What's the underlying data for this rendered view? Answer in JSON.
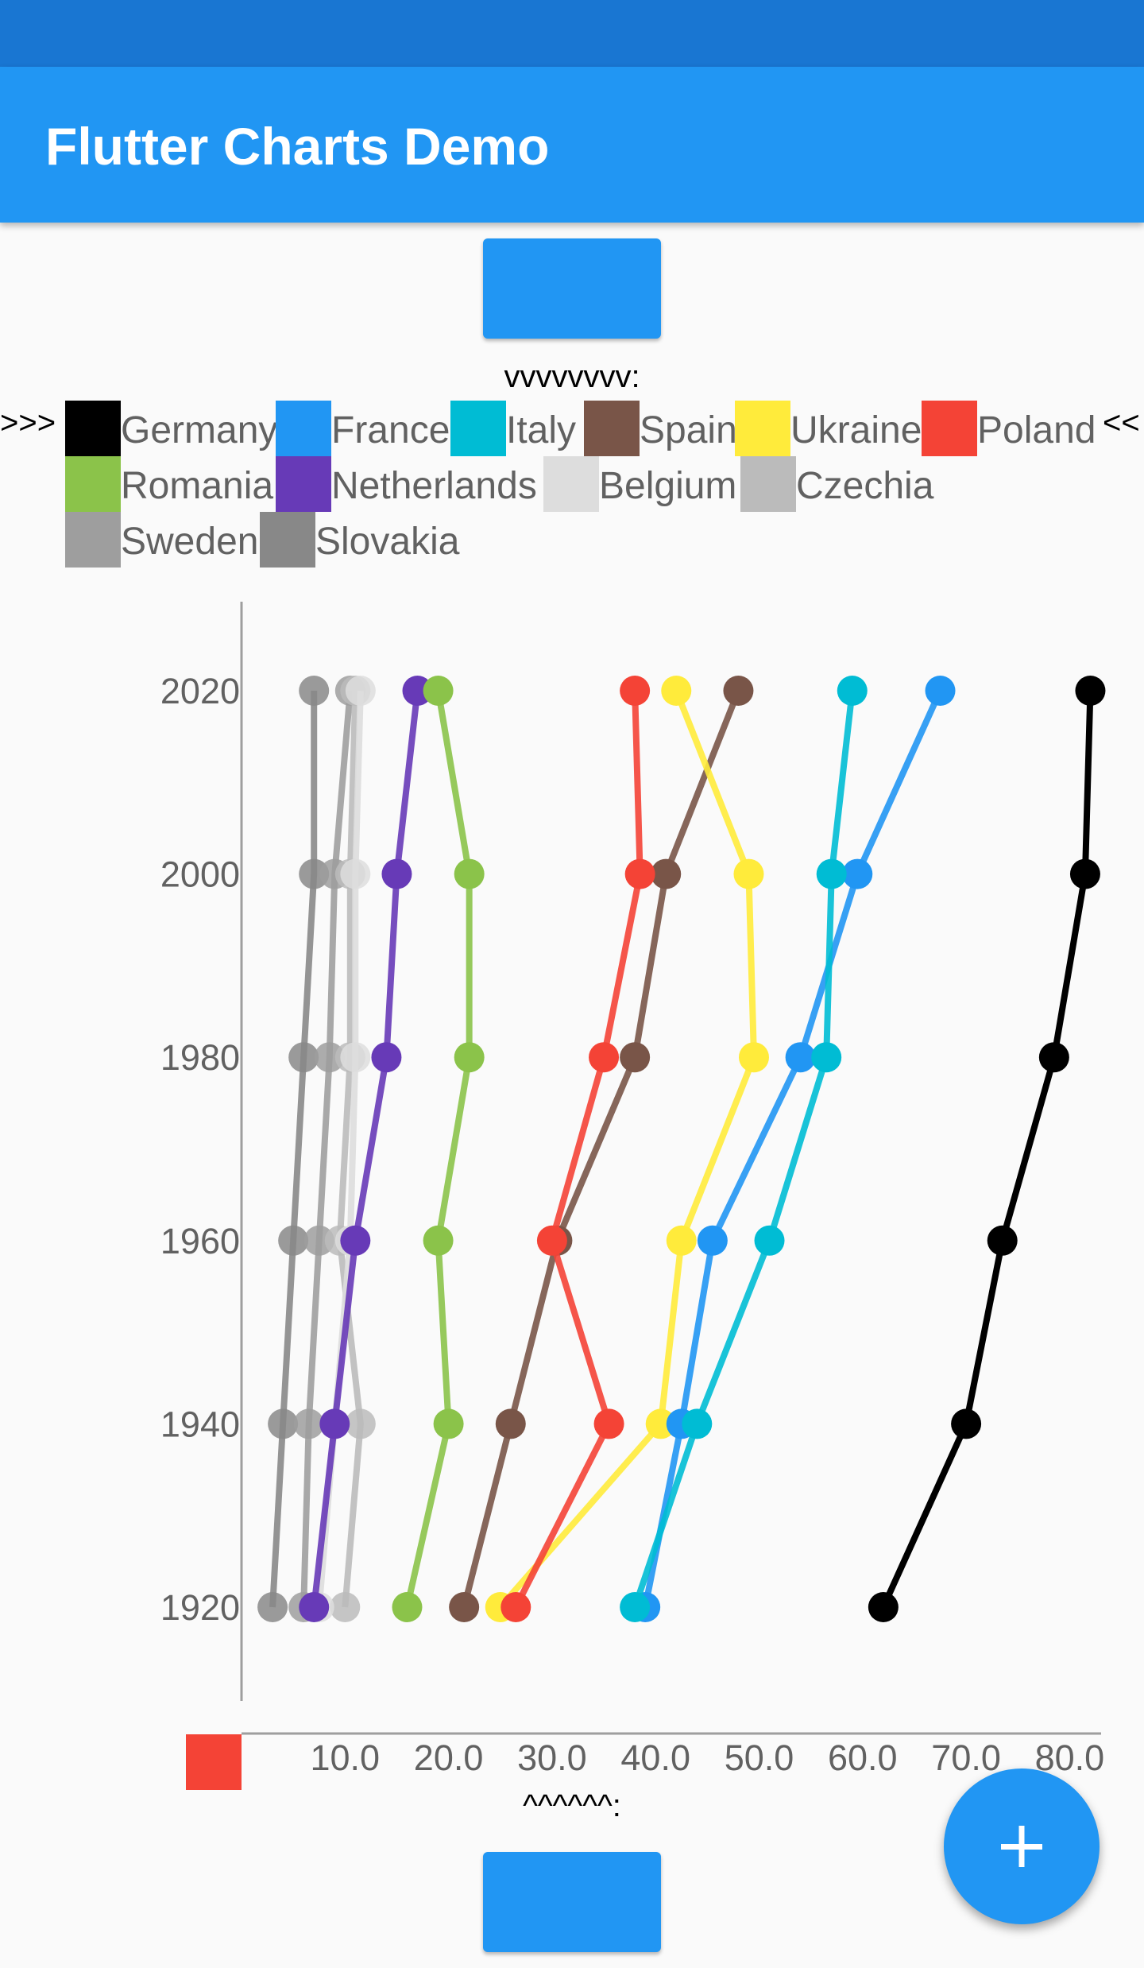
{
  "app": {
    "title": "Flutter Charts Demo"
  },
  "hints": {
    "top": "vvvvvvvv:",
    "bottom": "^^^^^^:"
  },
  "legend": {
    "left_marker": ">>>",
    "right_marker": "<<",
    "rows": [
      [
        {
          "name": "Germany",
          "color": "#000000",
          "left": 82,
          "width": 265
        },
        {
          "name": "France",
          "color": "#2196f3",
          "left": 347,
          "width": 220
        },
        {
          "name": "Italy",
          "color": "#00bcd4",
          "left": 567,
          "width": 168
        },
        {
          "name": "Spain",
          "color": "#795548",
          "left": 735,
          "width": 190
        },
        {
          "name": "Ukraine",
          "color": "#ffeb3b",
          "left": 925,
          "width": 235
        },
        {
          "name": "Poland",
          "color": "#f44336",
          "left": 1160,
          "width": 225
        }
      ],
      [
        {
          "name": "Romania",
          "color": "#8bc34a",
          "left": 82,
          "width": 265
        },
        {
          "name": "Netherlands",
          "color": "#673ab7",
          "left": 347,
          "width": 337
        },
        {
          "name": "Belgium",
          "color": "#dddddd",
          "left": 684,
          "width": 248
        },
        {
          "name": "Czechia",
          "color": "#bbbbbb",
          "left": 932,
          "width": 240
        }
      ],
      [
        {
          "name": "Sweden",
          "color": "#9e9e9e",
          "left": 82,
          "width": 245
        },
        {
          "name": "Slovakia",
          "color": "#888888",
          "left": 327,
          "width": 250
        }
      ]
    ]
  },
  "chart_data": {
    "type": "line",
    "orientation": "horizontal",
    "title": "",
    "xlabel": "",
    "ylabel": "",
    "x_ticks": [
      "10.0",
      "20.0",
      "30.0",
      "40.0",
      "50.0",
      "60.0",
      "70.0",
      "80.0"
    ],
    "y_ticks": [
      "1920",
      "1940",
      "1960",
      "1980",
      "2000",
      "2020"
    ],
    "xlim": [
      0,
      81
    ],
    "years": [
      1920,
      1940,
      1960,
      1980,
      2000,
      2020
    ],
    "series": [
      {
        "name": "Slovakia",
        "color": "#888888",
        "values": [
          3.0,
          4.0,
          5.0,
          6.0,
          7.0,
          7.0
        ]
      },
      {
        "name": "Sweden",
        "color": "#9e9e9e",
        "values": [
          6.0,
          6.5,
          7.5,
          8.5,
          9.0,
          10.5
        ]
      },
      {
        "name": "Czechia",
        "color": "#bbbbbb",
        "values": [
          10.0,
          11.5,
          9.5,
          10.5,
          10.5,
          11.0
        ]
      },
      {
        "name": "Belgium",
        "color": "#dddddd",
        "values": [
          7.5,
          9.0,
          10.5,
          11.0,
          11.0,
          11.5
        ]
      },
      {
        "name": "Netherlands",
        "color": "#673ab7",
        "values": [
          7.0,
          9.0,
          11.0,
          14.0,
          15.0,
          17.0
        ]
      },
      {
        "name": "Romania",
        "color": "#8bc34a",
        "values": [
          16.0,
          20.0,
          19.0,
          22.0,
          22.0,
          19.0
        ]
      },
      {
        "name": "Spain",
        "color": "#795548",
        "values": [
          21.5,
          26.0,
          30.5,
          38.0,
          41.0,
          48.0
        ]
      },
      {
        "name": "Ukraine",
        "color": "#ffeb3b",
        "values": [
          25.0,
          40.5,
          42.5,
          49.5,
          49.0,
          42.0
        ]
      },
      {
        "name": "Poland",
        "color": "#f44336",
        "values": [
          26.5,
          35.5,
          30.0,
          35.0,
          38.5,
          38.0
        ]
      },
      {
        "name": "France",
        "color": "#2196f3",
        "values": [
          39.0,
          42.5,
          45.5,
          54.0,
          59.5,
          67.5
        ]
      },
      {
        "name": "Italy",
        "color": "#00bcd4",
        "values": [
          38.0,
          44.0,
          51.0,
          56.5,
          57.0,
          59.0
        ]
      },
      {
        "name": "Germany",
        "color": "#000000",
        "values": [
          62.0,
          70.0,
          73.5,
          78.5,
          81.5,
          82.0
        ]
      }
    ]
  }
}
